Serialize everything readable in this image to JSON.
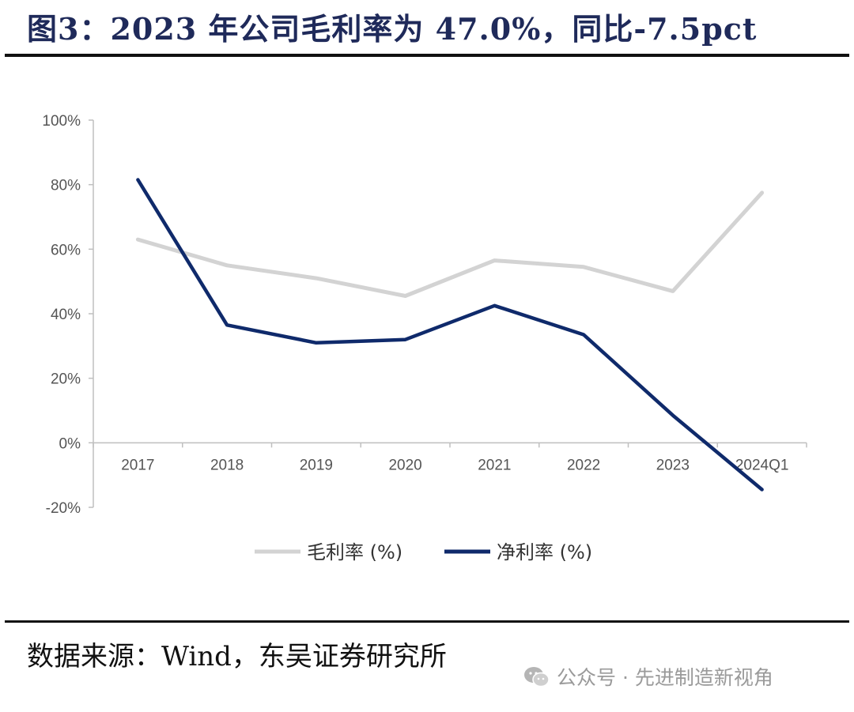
{
  "header": {
    "title": "图3：2023 年公司毛利率为 47.0%，同比-7.5pct"
  },
  "footer": {
    "source": "数据来源：Wind，东吴证券研究所"
  },
  "watermark": {
    "text": "公众号 · 先进制造新视角"
  },
  "chart_data": {
    "type": "line",
    "categories": [
      "2017",
      "2018",
      "2019",
      "2020",
      "2021",
      "2022",
      "2023",
      "2024Q1"
    ],
    "series": [
      {
        "name": "毛利率 (%)",
        "color": "#d3d3d3",
        "values": [
          63,
          55,
          51,
          45.5,
          56.5,
          54.5,
          47,
          77.5
        ]
      },
      {
        "name": "净利率 (%)",
        "color": "#0f2a6b",
        "values": [
          81.5,
          36.5,
          31,
          32,
          42.5,
          33.5,
          8.5,
          -14.5
        ]
      }
    ],
    "yticks": [
      "100%",
      "80%",
      "60%",
      "40%",
      "20%",
      "0%",
      "-20%"
    ],
    "ylim": [
      -20,
      100
    ],
    "grid": false,
    "legend": "bottom"
  }
}
